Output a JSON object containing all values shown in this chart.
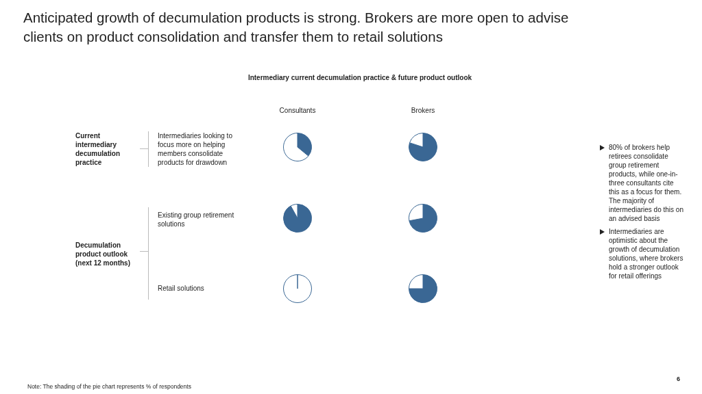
{
  "chart_data": [
    {
      "type": "other",
      "title": "Anticipated growth of decumulation products is strong. Brokers are more open to advise clients on product consolidation and transfer them to retail solutions",
      "subtitle": "Intermediary current decumulation practice & future product outlook",
      "categories": [
        "Consultants",
        "Brokers"
      ],
      "y_categories": [
        "Intermediaries looking to focus more on helping members consolidate products for drawdown",
        "Existing group retirement solutions",
        "Retail solutions"
      ],
      "annotations": [
        "Current intermediary decumulation practice",
        "Decumulation product outlook (next 12 months)",
        "80% of brokers help retirees consolidate group retirement products, while one-in-three consultants cite this as a focus for them. The majority of intermediaries do this on an advised basis",
        "Intermediaries are optimistic about the growth of decumulation solutions, where brokers hold a stronger outlook for retail offerings",
        "Note: The shading of the pie chart represents % of respondents",
        "6"
      ]
    },
    {
      "type": "pie",
      "categories": [
        null,
        null
      ],
      "values": [
        36,
        64
      ],
      "colors": [
        "#3a6794",
        "#ffffff"
      ]
    },
    {
      "type": "pie",
      "categories": [
        null,
        null
      ],
      "values": [
        80,
        20
      ],
      "colors": [
        "#3a6794",
        "#ffffff"
      ]
    },
    {
      "type": "pie",
      "categories": [
        null,
        null
      ],
      "values": [
        92,
        8
      ],
      "colors": [
        "#3a6794",
        "#ffffff"
      ]
    },
    {
      "type": "pie",
      "categories": [
        null,
        null
      ],
      "values": [
        72,
        28
      ],
      "colors": [
        "#3a6794",
        "#ffffff"
      ]
    },
    {
      "type": "pie",
      "categories": [
        null,
        null
      ],
      "values": [
        0,
        100
      ],
      "colors": [
        "#3a6794",
        "#ffffff"
      ]
    },
    {
      "type": "pie",
      "categories": [
        null,
        null
      ],
      "values": [
        75,
        25
      ],
      "colors": [
        "#3a6794",
        "#ffffff"
      ]
    }
  ]
}
